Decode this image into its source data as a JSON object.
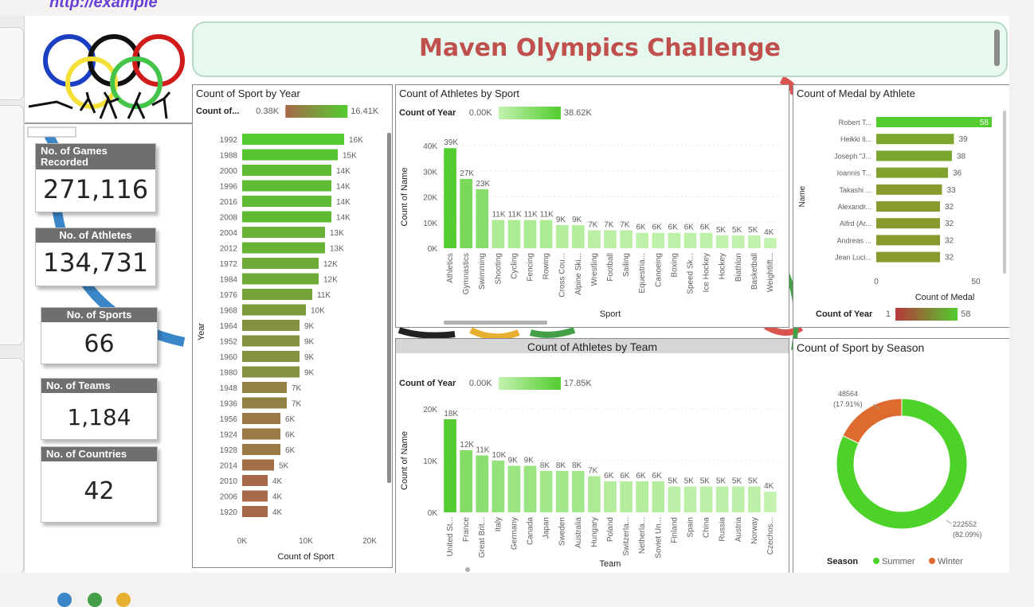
{
  "header": {
    "link_text": "http://example",
    "title": "Maven Olympics Challenge"
  },
  "cards": [
    {
      "label": "No. of Games Recorded",
      "value": "271,116"
    },
    {
      "label": "No. of Athletes",
      "value": "134,731"
    },
    {
      "label": "No. of Sports",
      "value": "66"
    },
    {
      "label": "No. of Teams",
      "value": "1,184"
    },
    {
      "label": "No. of Countries",
      "value": "42"
    }
  ],
  "colors": {
    "bar_high": "#52cc2f",
    "bar_low": "#a8684a",
    "bar_light": "#c4f2b0",
    "summer": "#4dd22a",
    "winter": "#dd6a2e",
    "title_red": "#c0504d"
  },
  "chart_data": [
    {
      "type": "bar",
      "orientation": "horizontal",
      "title": "Count of Sport by Year",
      "ylabel": "Year",
      "xlabel": "Count of Sport",
      "legend": {
        "label": "Count of...",
        "min_label": "0.38K",
        "max_label": "16.41K"
      },
      "categories": [
        "1992",
        "1988",
        "2000",
        "1996",
        "2016",
        "2008",
        "2004",
        "2012",
        "1972",
        "1984",
        "1976",
        "1968",
        "1964",
        "1952",
        "1960",
        "1980",
        "1948",
        "1936",
        "1956",
        "1924",
        "1928",
        "2014",
        "2010",
        "2006",
        "1920"
      ],
      "values": [
        16,
        15,
        14,
        14,
        14,
        14,
        13,
        13,
        12,
        12,
        11,
        10,
        9,
        9,
        9,
        9,
        7,
        7,
        6,
        6,
        6,
        5,
        4,
        4,
        4
      ],
      "labels": [
        "16K",
        "15K",
        "14K",
        "14K",
        "14K",
        "14K",
        "13K",
        "13K",
        "12K",
        "12K",
        "11K",
        "10K",
        "9K",
        "9K",
        "9K",
        "9K",
        "7K",
        "7K",
        "6K",
        "6K",
        "6K",
        "5K",
        "4K",
        "4K",
        "4K"
      ],
      "xticks": [
        "0K",
        "10K",
        "20K"
      ],
      "xlim": [
        0,
        20
      ]
    },
    {
      "type": "bar",
      "title": "Count of Athletes by Sport",
      "xlabel": "Sport",
      "ylabel": "Count of Name",
      "legend": {
        "label": "Count of Year",
        "min_label": "0.00K",
        "max_label": "38.62K"
      },
      "categories": [
        "Athletics",
        "Gymnastics",
        "Swimming",
        "Shooting",
        "Cycling",
        "Fencing",
        "Rowing",
        "Cross Cou...",
        "Alpine Ski...",
        "Wrestling",
        "Football",
        "Sailing",
        "Equestria...",
        "Canoeing",
        "Boxing",
        "Speed Sk...",
        "Ice Hockey",
        "Hockey",
        "Biathlon",
        "Basketball",
        "Weightlift..."
      ],
      "values": [
        39,
        27,
        23,
        11,
        11,
        11,
        11,
        9,
        9,
        7,
        7,
        7,
        6,
        6,
        6,
        6,
        6,
        5,
        5,
        5,
        4
      ],
      "labels": [
        "39K",
        "27K",
        "23K",
        "11K",
        "11K",
        "11K",
        "11K",
        "9K",
        "9K",
        "7K",
        "7K",
        "7K",
        "6K",
        "6K",
        "6K",
        "6K",
        "6K",
        "5K",
        "5K",
        "5K",
        "4K"
      ],
      "yticks": [
        "0K",
        "10K",
        "20K",
        "30K",
        "40K"
      ],
      "ylim": [
        0,
        40
      ]
    },
    {
      "type": "bar",
      "orientation": "horizontal",
      "title": "Count of Medal by Athlete",
      "ylabel": "Name",
      "xlabel": "Count of Medal",
      "legend": {
        "label": "Count of Year",
        "min_label": "1",
        "max_label": "58"
      },
      "categories": [
        "Robert T...",
        "Heikki Il...",
        "Joseph \"J...",
        "Ioannis T...",
        "Takashi ...",
        "Alexandr...",
        "Alfrd (Ar...",
        "Andreas ...",
        "Jean Luci..."
      ],
      "values": [
        58,
        39,
        38,
        36,
        33,
        32,
        32,
        32,
        32
      ],
      "labels": [
        "58",
        "39",
        "38",
        "36",
        "33",
        "32",
        "32",
        "32",
        "32"
      ],
      "xticks": [
        "0",
        "50"
      ],
      "xlim": [
        0,
        60
      ]
    },
    {
      "type": "bar",
      "title": "Count of Athletes by Team",
      "xlabel": "Team",
      "ylabel": "Count of Name",
      "legend": {
        "label": "Count of Year",
        "min_label": "0.00K",
        "max_label": "17.85K"
      },
      "categories": [
        "United St...",
        "France",
        "Great Brit...",
        "Italy",
        "Germany",
        "Canada",
        "Japan",
        "Sweden",
        "Australia",
        "Hungary",
        "Poland",
        "Switzerla...",
        "Netherla...",
        "Soviet Un...",
        "Finland",
        "Spain",
        "China",
        "Russia",
        "Austria",
        "Norway",
        "Czechos..."
      ],
      "values": [
        18,
        12,
        11,
        10,
        9,
        9,
        8,
        8,
        8,
        7,
        6,
        6,
        6,
        6,
        5,
        5,
        5,
        5,
        5,
        5,
        4
      ],
      "labels": [
        "18K",
        "12K",
        "11K",
        "10K",
        "9K",
        "9K",
        "8K",
        "8K",
        "8K",
        "7K",
        "6K",
        "6K",
        "6K",
        "6K",
        "5K",
        "5K",
        "5K",
        "5K",
        "5K",
        "5K",
        "4K"
      ],
      "yticks": [
        "0K",
        "10K",
        "20K"
      ],
      "ylim": [
        0,
        20
      ]
    },
    {
      "type": "pie",
      "donut": true,
      "title": "Count of Sport by Season",
      "legend": {
        "label": "Season",
        "placement": "bottom",
        "items": [
          "Summer",
          "Winter"
        ]
      },
      "categories": [
        "Summer",
        "Winter"
      ],
      "values": [
        222552,
        48564
      ],
      "labels": [
        "222552",
        "48564"
      ],
      "pct_labels": [
        "(82.09%)",
        "(17.91%)"
      ]
    }
  ]
}
